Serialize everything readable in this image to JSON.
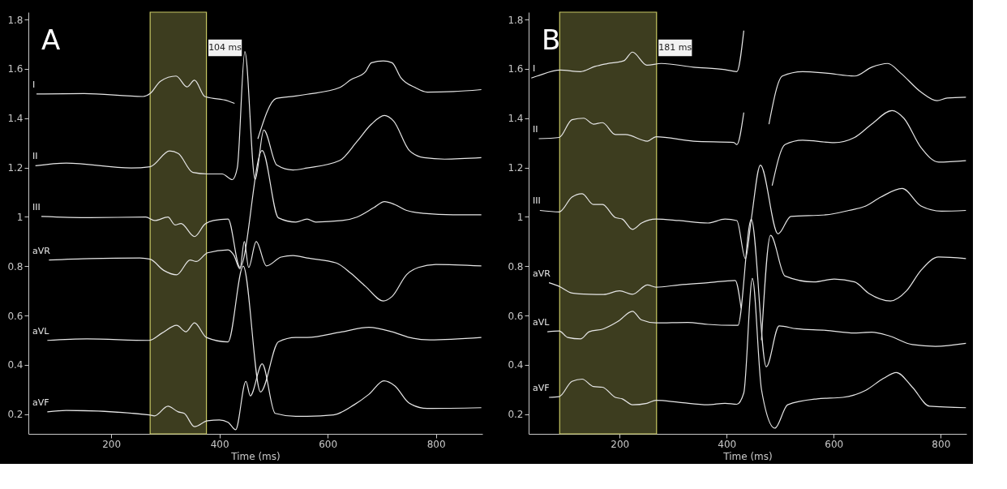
{
  "chart_data": [
    {
      "type": "line",
      "annotations": [
        "A"
      ],
      "xlabel": "Time (ms)",
      "xlim": [
        47,
        886
      ],
      "ylim": [
        0.12,
        1.83
      ],
      "xticks": [
        200,
        400,
        600,
        800
      ],
      "yticks": [
        0.2,
        0.4,
        0.6,
        0.8,
        1,
        1.2,
        1.4,
        1.6,
        1.8
      ],
      "grid": false,
      "bands": [
        {
          "axis": "x",
          "from": 272,
          "to": 376,
          "label": "104 ms",
          "color": "#3d3d1f"
        }
      ],
      "series": [
        {
          "name": "I",
          "color": "#e6e6e6",
          "x": [
            62,
            150,
            259,
            272,
            291,
            320,
            340,
            354,
            373,
            416,
            428,
            440,
            448,
            471,
            505,
            541,
            562,
            622,
            643,
            670,
            681,
            703,
            719,
            735,
            762,
            784,
            832,
            884
          ],
          "values": [
            1.498,
            1.5,
            1.488,
            1.5,
            1.55,
            1.571,
            1.527,
            1.554,
            1.488,
            1.47,
            1.46,
            null,
            null,
            1.316,
            1.48,
            1.49,
            1.497,
            1.524,
            1.556,
            1.589,
            1.625,
            1.632,
            1.625,
            1.565,
            1.524,
            1.506,
            1.508,
            1.516
          ]
        },
        {
          "name": "II",
          "color": "#e6e6e6",
          "x": [
            60,
            117,
            237,
            272,
            308,
            324,
            351,
            378,
            405,
            424,
            433,
            447,
            466,
            482,
            506,
            536,
            562,
            622,
            654,
            681,
            705,
            722,
            751,
            778,
            816,
            884
          ],
          "values": [
            1.207,
            1.218,
            1.198,
            1.203,
            1.267,
            1.257,
            1.18,
            1.174,
            1.174,
            1.151,
            1.198,
            1.67,
            1.151,
            1.352,
            1.21,
            1.19,
            1.198,
            1.228,
            1.305,
            1.376,
            1.411,
            1.388,
            1.269,
            1.24,
            1.234,
            1.24
          ]
        },
        {
          "name": "III",
          "color": "#e6e6e6",
          "x": [
            71,
            161,
            264,
            280,
            305,
            318,
            329,
            354,
            373,
            389,
            416,
            438,
            479,
            509,
            541,
            562,
            578,
            627,
            654,
            686,
            705,
            724,
            746,
            778,
            832,
            884
          ],
          "values": [
            1.002,
            0.997,
            0.999,
            0.985,
            0.999,
            0.967,
            0.973,
            0.92,
            0.97,
            0.985,
            0.991,
            0.795,
            1.269,
            0.996,
            0.979,
            0.991,
            0.979,
            0.985,
            0.999,
            1.038,
            1.062,
            1.05,
            1.026,
            1.014,
            1.008,
            1.008
          ]
        },
        {
          "name": "aVR",
          "color": "#e6e6e6",
          "x": [
            85,
            161,
            253,
            272,
            297,
            321,
            346,
            357,
            378,
            416,
            427,
            438,
            446,
            454,
            468,
            487,
            514,
            536,
            562,
            616,
            643,
            670,
            703,
            719,
            746,
            768,
            800,
            884
          ],
          "values": [
            0.825,
            0.831,
            0.833,
            0.828,
            0.783,
            0.765,
            0.825,
            0.819,
            0.854,
            0.866,
            0.843,
            0.789,
            0.9,
            0.795,
            0.9,
            0.801,
            0.837,
            0.843,
            0.833,
            0.813,
            0.771,
            0.718,
            0.659,
            0.677,
            0.766,
            0.795,
            0.807,
            0.801
          ]
        },
        {
          "name": "aVL",
          "color": "#e6e6e6",
          "x": [
            82,
            155,
            270,
            294,
            321,
            338,
            354,
            376,
            416,
            444,
            476,
            509,
            541,
            562,
            627,
            676,
            719,
            751,
            789,
            884
          ],
          "values": [
            0.499,
            0.505,
            0.499,
            0.529,
            0.56,
            0.534,
            0.57,
            0.511,
            0.493,
            0.8,
            0.29,
            0.493,
            0.511,
            0.511,
            0.534,
            0.552,
            0.534,
            0.511,
            0.501,
            0.511
          ]
        },
        {
          "name": "aVF",
          "color": "#e6e6e6",
          "x": [
            82,
            117,
            270,
            280,
            305,
            324,
            335,
            354,
            378,
            400,
            416,
            430,
            449,
            457,
            479,
            503,
            541,
            562,
            611,
            649,
            676,
            704,
            724,
            751,
            784,
            884
          ],
          "values": [
            0.209,
            0.215,
            0.197,
            0.193,
            0.232,
            0.209,
            0.203,
            0.149,
            0.173,
            0.176,
            0.167,
            0.137,
            0.333,
            0.274,
            0.404,
            0.203,
            0.191,
            0.191,
            0.197,
            0.238,
            0.28,
            0.335,
            0.315,
            0.244,
            0.223,
            0.226
          ]
        }
      ]
    },
    {
      "type": "line",
      "annotations": [
        "B"
      ],
      "xlabel": "Time (ms)",
      "xlim": [
        30,
        848
      ],
      "ylim": [
        0.12,
        1.83
      ],
      "xticks": [
        200,
        400,
        600,
        800
      ],
      "yticks": [
        0.2,
        0.4,
        0.6,
        0.8,
        1,
        1.2,
        1.4,
        1.6,
        1.8
      ],
      "grid": false,
      "bands": [
        {
          "axis": "x",
          "from": 88,
          "to": 269,
          "label": "181 ms",
          "color": "#3d3d1f"
        }
      ],
      "series": [
        {
          "name": "I",
          "color": "#e6e6e6",
          "x": [
            35,
            46,
            89,
            127,
            154,
            176,
            208,
            224,
            251,
            278,
            338,
            397,
            419,
            432,
            442,
            452,
            479,
            504,
            542,
            585,
            639,
            671,
            701,
            725,
            763,
            793,
            812,
            847
          ],
          "values": [
            1.563,
            1.571,
            1.595,
            1.589,
            1.61,
            1.621,
            1.633,
            1.668,
            1.615,
            1.622,
            1.607,
            1.597,
            1.589,
            1.755,
            null,
            null,
            1.376,
            1.571,
            1.589,
            1.583,
            1.571,
            1.607,
            1.622,
            1.583,
            1.506,
            1.471,
            1.482,
            1.485
          ]
        },
        {
          "name": "II",
          "color": "#e6e6e6",
          "x": [
            49,
            87,
            111,
            133,
            151,
            168,
            192,
            211,
            252,
            268,
            338,
            413,
            419,
            432,
            446,
            455,
            485,
            509,
            542,
            601,
            639,
            671,
            709,
            731,
            763,
            796,
            847
          ],
          "values": [
            1.317,
            1.322,
            1.394,
            1.4,
            1.376,
            1.382,
            1.334,
            1.334,
            1.307,
            1.325,
            1.307,
            1.302,
            1.293,
            1.423,
            null,
            null,
            1.127,
            1.293,
            1.311,
            1.301,
            1.322,
            1.376,
            1.431,
            1.4,
            1.281,
            1.222,
            1.228
          ]
        },
        {
          "name": "III",
          "color": "#e6e6e6",
          "x": [
            51,
            87,
            111,
            130,
            151,
            168,
            192,
            205,
            224,
            241,
            268,
            311,
            365,
            397,
            419,
            435,
            446,
            463,
            496,
            520,
            585,
            628,
            660,
            688,
            728,
            763,
            801,
            847
          ],
          "values": [
            1.026,
            1.02,
            1.08,
            1.094,
            1.05,
            1.05,
            0.997,
            0.991,
            0.949,
            0.975,
            0.991,
            0.985,
            0.975,
            0.991,
            0.985,
            0.83,
            0.991,
            1.21,
            0.931,
            1.002,
            1.008,
            1.026,
            1.044,
            1.08,
            1.115,
            1.044,
            1.023,
            1.026
          ]
        },
        {
          "name": "aVR",
          "color": "#e6e6e6",
          "x": [
            68,
            87,
            111,
            143,
            170,
            200,
            224,
            252,
            268,
            311,
            365,
            416,
            427,
            440,
            452,
            465,
            482,
            509,
            563,
            601,
            639,
            666,
            706,
            736,
            763,
            796,
            847
          ],
          "values": [
            0.733,
            0.718,
            0.691,
            0.686,
            0.685,
            0.7,
            0.686,
            0.724,
            0.715,
            0.724,
            0.733,
            0.742,
            0.629,
            null,
            null,
            0.5,
            0.925,
            0.76,
            0.736,
            0.748,
            0.736,
            0.689,
            0.659,
            0.7,
            0.783,
            0.837,
            0.831
          ]
        },
        {
          "name": "aVL",
          "color": "#e6e6e6",
          "x": [
            65,
            87,
            103,
            127,
            143,
            170,
            197,
            224,
            241,
            268,
            327,
            365,
            413,
            421,
            446,
            474,
            498,
            531,
            585,
            639,
            671,
            704,
            747,
            790,
            847
          ],
          "values": [
            0.534,
            0.537,
            0.511,
            0.505,
            0.534,
            0.546,
            0.576,
            0.617,
            0.582,
            0.57,
            0.572,
            0.564,
            0.56,
            0.56,
            0.99,
            0.392,
            0.558,
            0.546,
            0.54,
            0.529,
            0.532,
            0.517,
            0.482,
            0.475,
            0.487
          ]
        },
        {
          "name": "aVF",
          "color": "#e6e6e6",
          "x": [
            68,
            87,
            111,
            130,
            151,
            168,
            192,
            205,
            224,
            251,
            268,
            311,
            365,
            397,
            419,
            432,
            448,
            465,
            490,
            514,
            569,
            617,
            660,
            693,
            717,
            747,
            779,
            847
          ],
          "values": [
            0.268,
            0.271,
            0.333,
            0.342,
            0.312,
            0.309,
            0.268,
            0.262,
            0.238,
            0.244,
            0.256,
            0.248,
            0.238,
            0.244,
            0.24,
            0.286,
            0.75,
            0.3,
            0.143,
            0.238,
            0.262,
            0.268,
            0.297,
            0.345,
            0.369,
            0.309,
            0.232,
            0.226
          ]
        }
      ]
    }
  ]
}
